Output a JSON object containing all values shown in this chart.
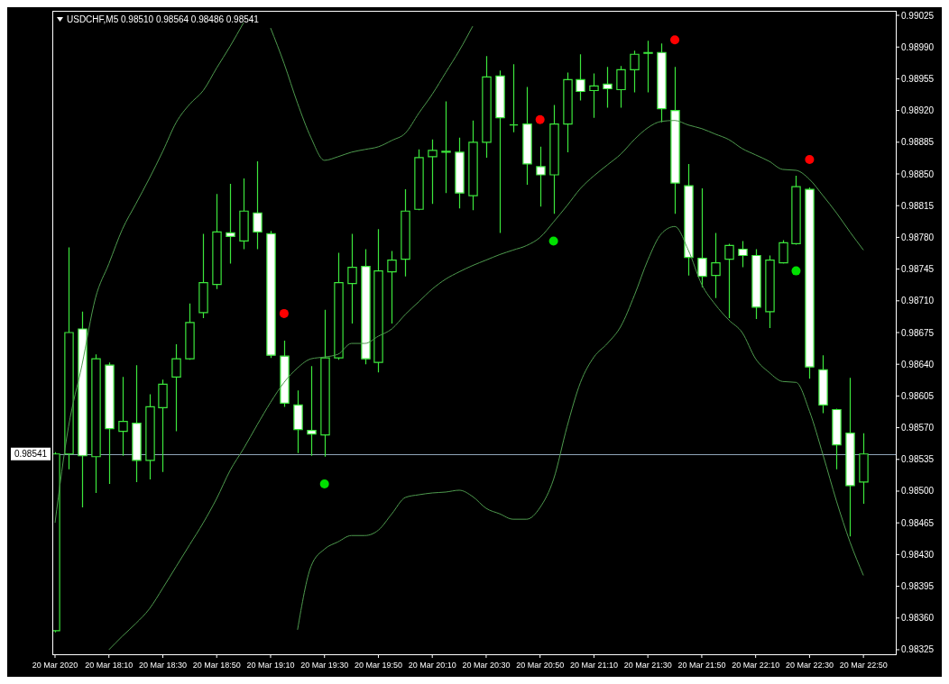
{
  "chart_data": {
    "type": "candlestick",
    "title": "USDCHF,M5 0.98510 0.98564 0.98486 0.98541",
    "color": "#3ce63c",
    "x": [
      "2020-03-20T17:50",
      "2020-03-20T17:55",
      "2020-03-20T18:00",
      "2020-03-20T18:05",
      "2020-03-20T18:10",
      "2020-03-20T18:15",
      "2020-03-20T18:20",
      "2020-03-20T18:25",
      "2020-03-20T18:30",
      "2020-03-20T18:35",
      "2020-03-20T18:40",
      "2020-03-20T18:45",
      "2020-03-20T18:50",
      "2020-03-20T18:55",
      "2020-03-20T19:00",
      "2020-03-20T19:05",
      "2020-03-20T19:10",
      "2020-03-20T19:15",
      "2020-03-20T19:20",
      "2020-03-20T19:25",
      "2020-03-20T19:30",
      "2020-03-20T19:35",
      "2020-03-20T19:40",
      "2020-03-20T19:45",
      "2020-03-20T19:50",
      "2020-03-20T19:55",
      "2020-03-20T20:00",
      "2020-03-20T20:05",
      "2020-03-20T20:10",
      "2020-03-20T20:15",
      "2020-03-20T20:20",
      "2020-03-20T20:25",
      "2020-03-20T20:30",
      "2020-03-20T20:35",
      "2020-03-20T20:40",
      "2020-03-20T20:45",
      "2020-03-20T20:50",
      "2020-03-20T20:55",
      "2020-03-20T21:00",
      "2020-03-20T21:05",
      "2020-03-20T21:10",
      "2020-03-20T21:15",
      "2020-03-20T21:20",
      "2020-03-20T21:25",
      "2020-03-20T21:30",
      "2020-03-20T21:35",
      "2020-03-20T21:40",
      "2020-03-20T21:45",
      "2020-03-20T21:50",
      "2020-03-20T21:55",
      "2020-03-20T22:00",
      "2020-03-20T22:05",
      "2020-03-20T22:10",
      "2020-03-20T22:15",
      "2020-03-20T22:20",
      "2020-03-20T22:25",
      "2020-03-20T22:30",
      "2020-03-20T22:35",
      "2020-03-20T22:40",
      "2020-03-20T22:45",
      "2020-03-20T22:50"
    ],
    "ohlc": [
      [
        0.98346,
        0.98543,
        0.98344,
        0.98541
      ],
      [
        0.98541,
        0.98769,
        0.98524,
        0.98675
      ],
      [
        0.98679,
        0.98698,
        0.98482,
        0.98539
      ],
      [
        0.98538,
        0.98651,
        0.98498,
        0.98646
      ],
      [
        0.98639,
        0.98642,
        0.98508,
        0.98569
      ],
      [
        0.98566,
        0.98626,
        0.98539,
        0.98577
      ],
      [
        0.98575,
        0.98639,
        0.9851,
        0.98534
      ],
      [
        0.98534,
        0.98607,
        0.98513,
        0.98593
      ],
      [
        0.98592,
        0.98623,
        0.98521,
        0.98618
      ],
      [
        0.98626,
        0.98662,
        0.98566,
        0.98646
      ],
      [
        0.98646,
        0.98707,
        0.98645,
        0.98686
      ],
      [
        0.98697,
        0.98784,
        0.98691,
        0.9873
      ],
      [
        0.98728,
        0.98828,
        0.98723,
        0.98786
      ],
      [
        0.98785,
        0.98839,
        0.98751,
        0.98781
      ],
      [
        0.98776,
        0.98845,
        0.98767,
        0.98809
      ],
      [
        0.98807,
        0.98864,
        0.98767,
        0.98786
      ],
      [
        0.98784,
        0.98787,
        0.98647,
        0.9865
      ],
      [
        0.98649,
        0.98666,
        0.98593,
        0.98597
      ],
      [
        0.98595,
        0.98611,
        0.98542,
        0.98568
      ],
      [
        0.98567,
        0.98638,
        0.98539,
        0.98563
      ],
      [
        0.98562,
        0.987,
        0.98538,
        0.98647
      ],
      [
        0.98647,
        0.98763,
        0.98645,
        0.9873
      ],
      [
        0.98729,
        0.98784,
        0.98685,
        0.98747
      ],
      [
        0.98748,
        0.98767,
        0.9864,
        0.98646
      ],
      [
        0.98642,
        0.98789,
        0.98631,
        0.98743
      ],
      [
        0.98742,
        0.98765,
        0.98685,
        0.98755
      ],
      [
        0.98756,
        0.98833,
        0.98737,
        0.98809
      ],
      [
        0.98811,
        0.98877,
        0.9881,
        0.98868
      ],
      [
        0.98869,
        0.98888,
        0.98817,
        0.98876
      ],
      [
        0.98874,
        0.9893,
        0.98829,
        0.98875
      ],
      [
        0.98874,
        0.9889,
        0.98812,
        0.98829
      ],
      [
        0.98826,
        0.98909,
        0.9881,
        0.98885
      ],
      [
        0.98885,
        0.9898,
        0.98868,
        0.98957
      ],
      [
        0.98958,
        0.98964,
        0.98785,
        0.98912
      ],
      [
        0.98904,
        0.98971,
        0.98896,
        0.98904
      ],
      [
        0.98905,
        0.98946,
        0.98838,
        0.98861
      ],
      [
        0.98858,
        0.9888,
        0.98814,
        0.98849
      ],
      [
        0.98849,
        0.98926,
        0.98806,
        0.98905
      ],
      [
        0.98905,
        0.98962,
        0.98874,
        0.98954
      ],
      [
        0.98954,
        0.98982,
        0.98931,
        0.98941
      ],
      [
        0.98942,
        0.98961,
        0.98912,
        0.98947
      ],
      [
        0.98949,
        0.98968,
        0.98923,
        0.98944
      ],
      [
        0.98943,
        0.98969,
        0.98923,
        0.98965
      ],
      [
        0.98965,
        0.98986,
        0.9894,
        0.98982
      ],
      [
        0.98983,
        0.98997,
        0.9894,
        0.98984
      ],
      [
        0.98984,
        0.98994,
        0.98907,
        0.98922
      ],
      [
        0.9892,
        0.98968,
        0.98806,
        0.9884
      ],
      [
        0.98837,
        0.98861,
        0.98738,
        0.98758
      ],
      [
        0.98757,
        0.98834,
        0.98725,
        0.98737
      ],
      [
        0.98738,
        0.98785,
        0.98713,
        0.98752
      ],
      [
        0.98756,
        0.98773,
        0.98691,
        0.98771
      ],
      [
        0.98767,
        0.98776,
        0.98747,
        0.9876
      ],
      [
        0.9876,
        0.98767,
        0.9869,
        0.98703
      ],
      [
        0.98698,
        0.9876,
        0.9868,
        0.98755
      ],
      [
        0.98752,
        0.98777,
        0.98751,
        0.98774
      ],
      [
        0.98773,
        0.98848,
        0.98772,
        0.98836
      ],
      [
        0.98833,
        0.98835,
        0.98624,
        0.98637
      ],
      [
        0.98634,
        0.9865,
        0.98586,
        0.98595
      ],
      [
        0.9859,
        0.98591,
        0.98524,
        0.98551
      ],
      [
        0.98564,
        0.98625,
        0.9845,
        0.98506
      ],
      [
        0.9851,
        0.98564,
        0.98486,
        0.98541
      ]
    ],
    "series": [
      {
        "type": "line",
        "color": "#4e9a4e",
        "values": [
          0.98465,
          0.98571,
          0.98639,
          0.98713,
          0.98751,
          0.98789,
          0.98817,
          0.98845,
          0.98875,
          0.98907,
          0.98927,
          0.98942,
          0.98967,
          0.98991,
          0.99017,
          null,
          0.99011,
          0.98972,
          0.98928,
          0.9889,
          0.98865,
          0.98869,
          0.98874,
          0.98877,
          0.9888,
          0.98887,
          0.98895,
          0.98917,
          0.98938,
          0.98962,
          0.98986,
          0.99013,
          null,
          null,
          null,
          null,
          null,
          null,
          null,
          null,
          null,
          null,
          null,
          null,
          null,
          null,
          null,
          null,
          null,
          null,
          null,
          null,
          null,
          null,
          null,
          null,
          null,
          null,
          null,
          null,
          null
        ]
      },
      {
        "type": "line",
        "color": "#4e9a4e",
        "values": [
          null,
          null,
          null,
          null,
          0.98325,
          0.9834,
          0.98354,
          0.9837,
          0.98393,
          0.98417,
          0.98441,
          0.98465,
          0.98492,
          0.98523,
          0.98547,
          0.98573,
          0.98598,
          0.9862,
          0.98636,
          0.98646,
          0.98648,
          0.98651,
          0.98663,
          0.98663,
          0.98671,
          0.98679,
          0.98695,
          0.98709,
          0.98723,
          0.98734,
          0.98742,
          0.98749,
          0.98755,
          0.98761,
          0.98766,
          0.98771,
          0.9878,
          0.98797,
          0.98815,
          0.98834,
          0.98848,
          0.9886,
          0.98872,
          0.98888,
          0.98901,
          0.98908,
          0.98909,
          0.98904,
          0.989,
          0.98894,
          0.98888,
          0.98878,
          0.98871,
          0.98864,
          0.98855,
          0.98854,
          0.98844,
          0.98826,
          0.98807,
          0.98786,
          0.98766
        ]
      },
      {
        "type": "line",
        "color": "#4e9a4e",
        "values": [
          null,
          null,
          null,
          null,
          null,
          null,
          null,
          null,
          null,
          null,
          null,
          null,
          null,
          null,
          null,
          null,
          null,
          null,
          0.98347,
          0.98417,
          0.98436,
          0.98444,
          0.98451,
          0.98451,
          0.98457,
          0.98475,
          0.98493,
          0.98496,
          0.98498,
          0.98499,
          0.98501,
          0.98494,
          0.98481,
          0.98475,
          0.98469,
          0.98469,
          0.98482,
          0.98513,
          0.98571,
          0.9862,
          0.98648,
          0.98663,
          0.98682,
          0.98716,
          0.98755,
          0.98784,
          0.98792,
          0.98766,
          0.98728,
          0.98706,
          0.98689,
          0.98675,
          0.98646,
          0.98631,
          0.98621,
          0.9862,
          0.98588,
          0.9854,
          0.98489,
          0.98444,
          0.98407
        ]
      },
      {
        "type": "scatter",
        "color": "#ff0000",
        "marker": "circle",
        "x": [
          "2020-03-20T19:15",
          "2020-03-20T20:50",
          "2020-03-20T21:40",
          "2020-03-20T22:30"
        ],
        "values": [
          0.98696,
          0.9891,
          0.98998,
          0.98866
        ]
      },
      {
        "type": "scatter",
        "color": "#00e000",
        "marker": "circle",
        "x": [
          "2020-03-20T19:30",
          "2020-03-20T20:55",
          "2020-03-20T22:25"
        ],
        "values": [
          0.98508,
          0.98776,
          0.98743
        ]
      }
    ],
    "xlim": [
      "2020-03-20T17:49",
      "2020-03-20T23:02"
    ],
    "xticks": [
      {
        "value": "2020-03-20T17:50",
        "label": "20 Mar 2020"
      },
      {
        "value": "2020-03-20T18:10",
        "label": "20 Mar 18:10"
      },
      {
        "value": "2020-03-20T18:30",
        "label": "20 Mar 18:30"
      },
      {
        "value": "2020-03-20T18:50",
        "label": "20 Mar 18:50"
      },
      {
        "value": "2020-03-20T19:10",
        "label": "20 Mar 19:10"
      },
      {
        "value": "2020-03-20T19:30",
        "label": "20 Mar 19:30"
      },
      {
        "value": "2020-03-20T19:50",
        "label": "20 Mar 19:50"
      },
      {
        "value": "2020-03-20T20:10",
        "label": "20 Mar 20:10"
      },
      {
        "value": "2020-03-20T20:30",
        "label": "20 Mar 20:30"
      },
      {
        "value": "2020-03-20T20:50",
        "label": "20 Mar 20:50"
      },
      {
        "value": "2020-03-20T21:10",
        "label": "20 Mar 21:10"
      },
      {
        "value": "2020-03-20T21:30",
        "label": "20 Mar 21:30"
      },
      {
        "value": "2020-03-20T21:50",
        "label": "20 Mar 21:50"
      },
      {
        "value": "2020-03-20T22:10",
        "label": "20 Mar 22:10"
      },
      {
        "value": "2020-03-20T22:30",
        "label": "20 Mar 22:30"
      },
      {
        "value": "2020-03-20T22:50",
        "label": "20 Mar 22:50"
      }
    ],
    "ylim": [
      0.9832,
      0.9903
    ],
    "yticks": [
      0.99025,
      {
        "value": 0.9899,
        "label": "0.98990"
      },
      0.98955,
      {
        "value": 0.9892,
        "label": "0.98920"
      },
      0.98885,
      {
        "value": 0.9885,
        "label": "0.98850"
      },
      0.98815,
      {
        "value": 0.9878,
        "label": "0.98780"
      },
      0.98745,
      {
        "value": 0.9871,
        "label": "0.98710"
      },
      0.98675,
      {
        "value": 0.9864,
        "label": "0.98640"
      },
      0.98605,
      {
        "value": 0.9857,
        "label": "0.98570"
      },
      0.98535,
      {
        "value": 0.985,
        "label": "0.98500"
      },
      0.98465,
      {
        "value": 0.9843,
        "label": "0.98430"
      },
      0.98395,
      {
        "value": 0.9836,
        "label": "0.98360"
      },
      0.98325
    ],
    "ref_lines": [
      {
        "axis": "y",
        "value": 0.98541,
        "label": "0.98541",
        "color": "#8fa4b8"
      }
    ]
  }
}
